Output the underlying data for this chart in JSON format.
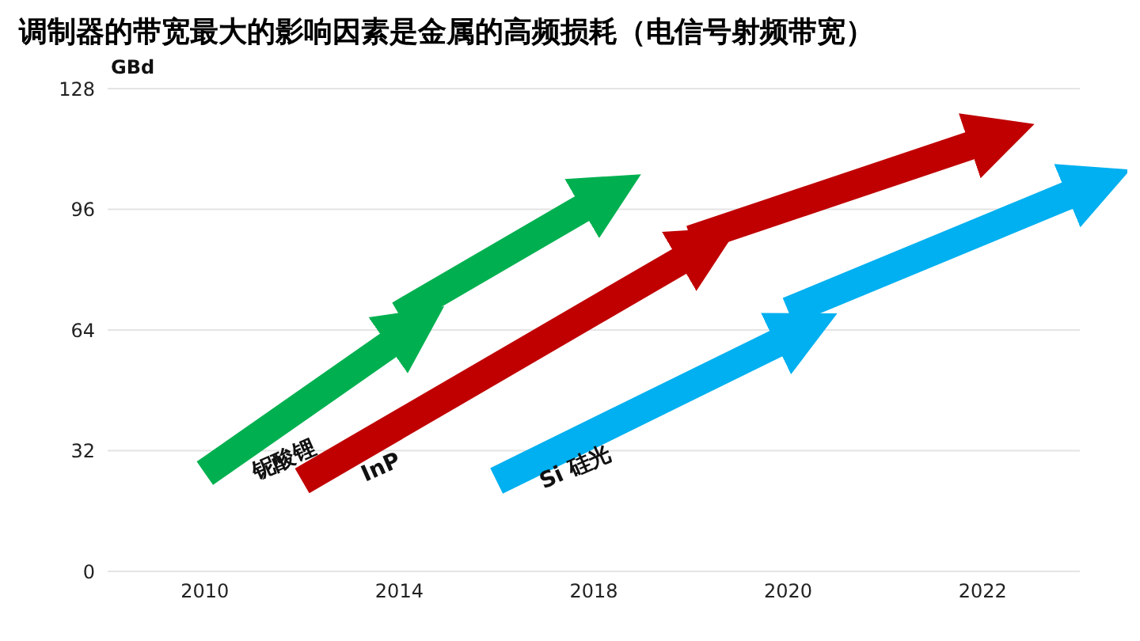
{
  "chart_data": {
    "type": "line",
    "title": "调制器的带宽最大的影响因素是金属的高频损耗（电信号射频带宽）",
    "ylabel": "GBd",
    "categories": [
      null,
      "2010",
      null,
      "2014",
      null,
      "2018",
      null,
      "2020",
      null,
      "2022",
      null
    ],
    "ylim": [
      0,
      128
    ],
    "yticks": [
      0,
      32,
      64,
      96,
      128
    ],
    "grid": "y",
    "legend": false,
    "marker": "none",
    "series": [
      {
        "name": "铌酸锂",
        "color": "#00b050",
        "values": [
          null,
          26,
          null,
          62,
          null,
          null,
          null,
          null,
          null,
          null,
          null
        ]
      },
      {
        "color": "#00b050",
        "values": [
          null,
          null,
          null,
          68,
          null,
          98,
          null,
          null,
          null,
          null,
          null
        ]
      },
      {
        "name": "InP",
        "color": "#c00000",
        "values": [
          null,
          null,
          24,
          null,
          null,
          null,
          84,
          null,
          null,
          null,
          null
        ]
      },
      {
        "color": "#c00000",
        "values": [
          null,
          null,
          null,
          null,
          null,
          null,
          88,
          null,
          null,
          114,
          null
        ]
      },
      {
        "name": "Si 硅光",
        "color": "#00b0f0",
        "values": [
          null,
          null,
          null,
          null,
          24,
          null,
          null,
          62,
          null,
          null,
          null
        ]
      },
      {
        "color": "#00b0f0",
        "values": [
          null,
          null,
          null,
          null,
          null,
          null,
          null,
          69,
          null,
          null,
          101
        ]
      }
    ]
  }
}
